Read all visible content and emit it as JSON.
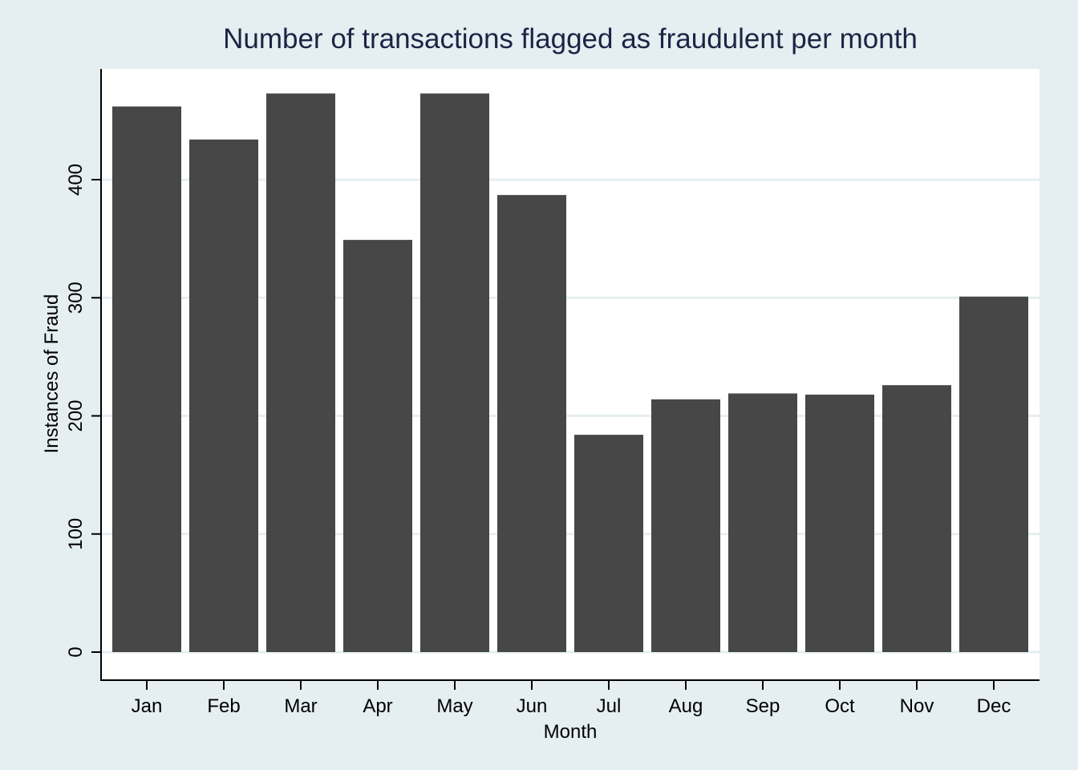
{
  "colors": {
    "background": "#e5eef0",
    "plot_background": "#ffffff",
    "grid": "#e5eef0",
    "bar": "#474747",
    "axis": "#000000",
    "title": "#1a2544",
    "text": "#000000"
  },
  "chart_data": {
    "type": "bar",
    "title": "Number of transactions flagged as fraudulent per month",
    "xlabel": "Month",
    "ylabel": "Instances of Fraud",
    "categories": [
      "Jan",
      "Feb",
      "Mar",
      "Apr",
      "May",
      "Jun",
      "Jul",
      "Aug",
      "Sep",
      "Oct",
      "Nov",
      "Dec"
    ],
    "values": [
      462,
      434,
      473,
      349,
      473,
      387,
      184,
      214,
      219,
      218,
      226,
      301
    ],
    "ylim": [
      0,
      491
    ],
    "yticks": [
      0,
      100,
      200,
      300,
      400
    ],
    "ytick_labels": [
      "0",
      "100",
      "200",
      "300",
      "400"
    ],
    "grid": true,
    "legend": false
  }
}
